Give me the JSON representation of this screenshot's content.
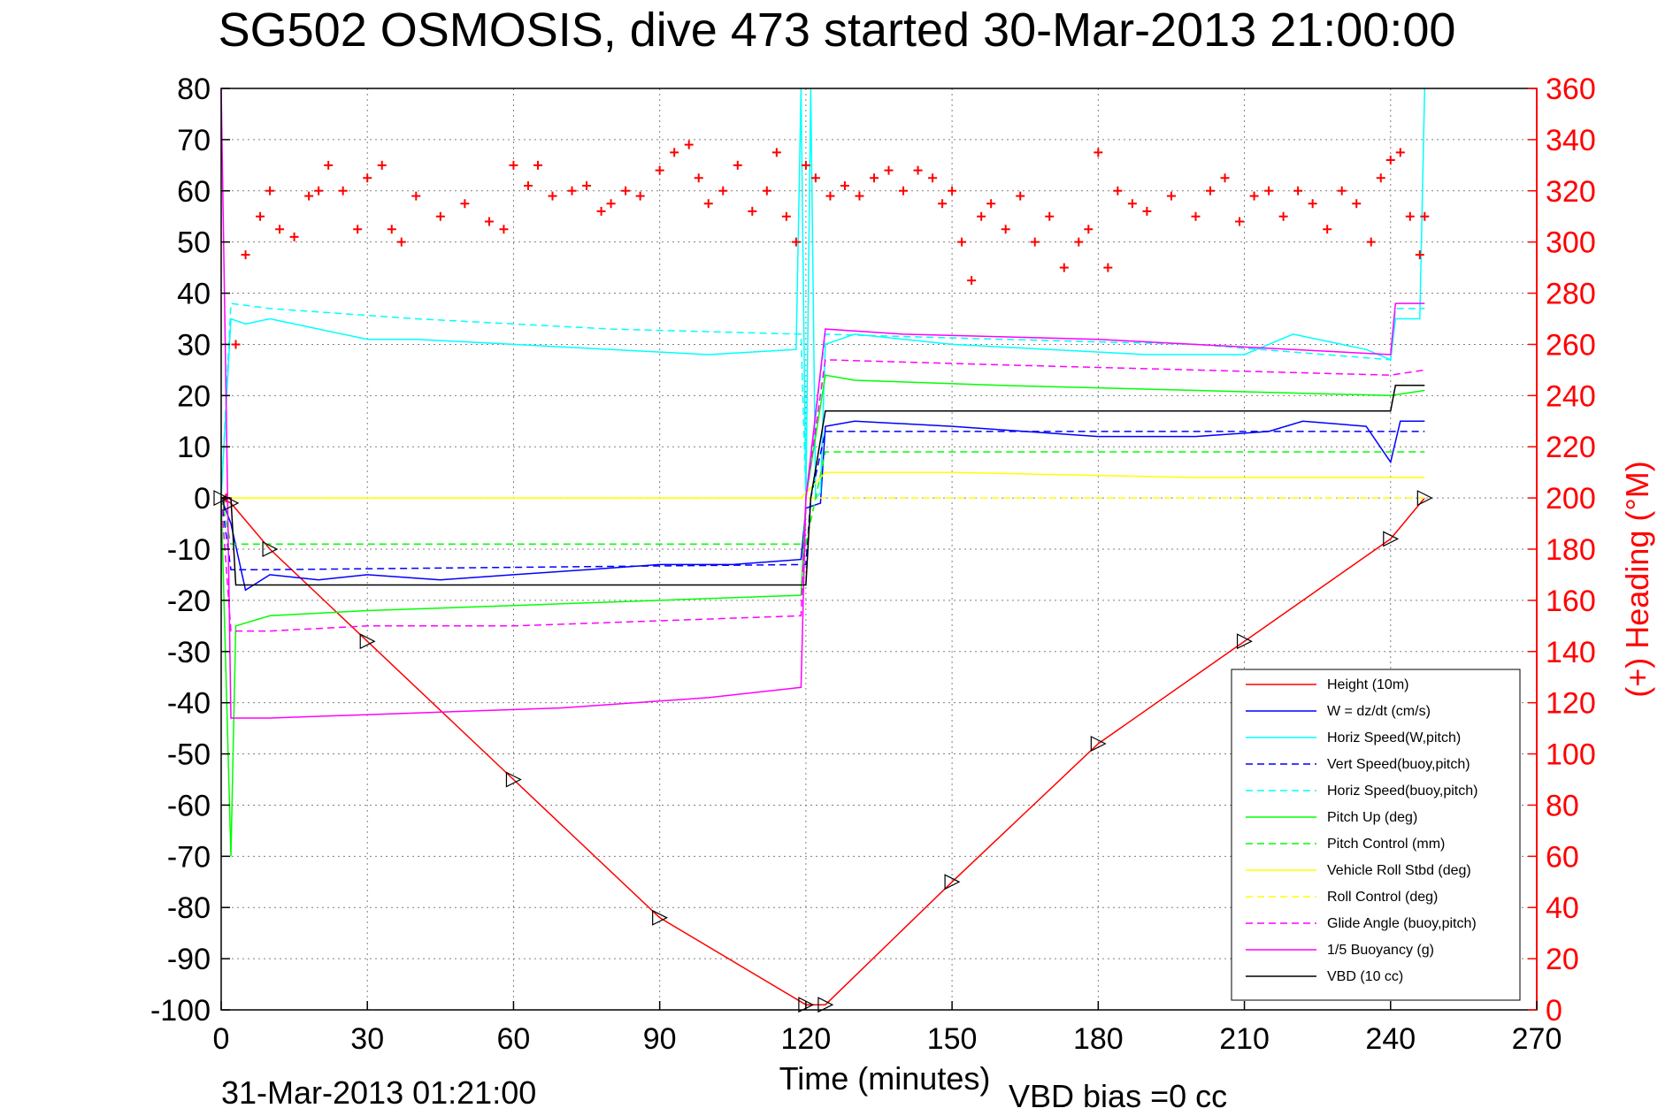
{
  "chart_data": {
    "type": "line",
    "title": "SG502 OSMOSIS, dive 473 started 30-Mar-2013 21:00:00",
    "xlabel": "Time (minutes)",
    "ylabel_right": "(+) Heading (°M)",
    "end_time": "31-Mar-2013 01:21:00",
    "vbd_bias": "VBD bias =0 cc",
    "xlim": [
      0,
      270
    ],
    "ylim": [
      -100,
      80
    ],
    "ylim_right": [
      0,
      360
    ],
    "x_ticks": [
      "0",
      "30",
      "60",
      "90",
      "120",
      "150",
      "180",
      "210",
      "240",
      "270"
    ],
    "y_ticks": [
      "80",
      "70",
      "60",
      "50",
      "40",
      "30",
      "20",
      "10",
      "0",
      "-10",
      "-20",
      "-30",
      "-40",
      "-50",
      "-60",
      "-70",
      "-80",
      "-90",
      "-100"
    ],
    "y_ticks_right": [
      "360",
      "340",
      "320",
      "300",
      "280",
      "260",
      "240",
      "220",
      "200",
      "180",
      "160",
      "140",
      "120",
      "100",
      "80",
      "60",
      "40",
      "20",
      "0"
    ],
    "grid": true,
    "legend_position": "bottom-right",
    "series": [
      {
        "name": "Height (10m)",
        "color": "#ff0000",
        "dash": "solid",
        "x": [
          0,
          2,
          10,
          30,
          60,
          90,
          120,
          124,
          150,
          180,
          210,
          240,
          247
        ],
        "y": [
          0,
          -1,
          -10,
          -28,
          -55,
          -82,
          -99,
          -99,
          -75,
          -48,
          -28,
          -8,
          0
        ]
      },
      {
        "name": "W = dz/dt (cm/s)",
        "color": "#0000ff",
        "dash": "solid",
        "x": [
          0,
          2,
          5,
          10,
          20,
          30,
          45,
          60,
          75,
          90,
          105,
          119,
          120,
          123,
          124,
          130,
          150,
          165,
          180,
          200,
          215,
          222,
          235,
          240,
          242,
          247
        ],
        "y": [
          0,
          -5,
          -18,
          -15,
          -16,
          -15,
          -16,
          -15,
          -14,
          -13,
          -13,
          -12,
          -2,
          -1,
          14,
          15,
          14,
          13,
          12,
          12,
          13,
          15,
          14,
          7,
          15,
          15
        ]
      },
      {
        "name": "Horiz Speed(W,pitch)",
        "color": "#00ffff",
        "dash": "solid",
        "x": [
          0,
          2,
          5,
          10,
          20,
          30,
          40,
          60,
          80,
          100,
          118,
          119,
          120,
          121,
          122,
          123,
          124,
          130,
          150,
          170,
          190,
          210,
          220,
          235,
          240,
          241,
          246,
          247
        ],
        "y": [
          0,
          35,
          34,
          35,
          33,
          31,
          31,
          30,
          29,
          28,
          29,
          80,
          0,
          80,
          0,
          1,
          30,
          32,
          30,
          29,
          28,
          28,
          32,
          29,
          27,
          35,
          35,
          80
        ]
      },
      {
        "name": "Vert Speed(buoy,pitch)",
        "color": "#0000ff",
        "dash": "dashed",
        "x": [
          0,
          2,
          10,
          120,
          121,
          124,
          247
        ],
        "y": [
          0,
          -14,
          -14,
          -13,
          0,
          13,
          13
        ]
      },
      {
        "name": "Horiz Speed(buoy,pitch)",
        "color": "#00ffff",
        "dash": "dashed",
        "x": [
          0,
          2,
          10,
          40,
          80,
          119,
          120,
          124,
          160,
          200,
          240,
          241,
          247
        ],
        "y": [
          0,
          38,
          37,
          35,
          33,
          32,
          0,
          32,
          31,
          30,
          27,
          37,
          37
        ]
      },
      {
        "name": "Pitch Up (deg)",
        "color": "#00ff00",
        "dash": "solid",
        "x": [
          0,
          2,
          3,
          10,
          30,
          60,
          90,
          119,
          120,
          124,
          130,
          160,
          200,
          240,
          247
        ],
        "y": [
          0,
          -70,
          -25,
          -23,
          -22,
          -21,
          -20,
          -19,
          0,
          24,
          23,
          22,
          21,
          20,
          21
        ]
      },
      {
        "name": "Pitch Control (mm)",
        "color": "#00ff00",
        "dash": "dashed",
        "x": [
          0,
          2,
          10,
          120,
          124,
          247
        ],
        "y": [
          0,
          -9,
          -9,
          -9,
          9,
          9
        ]
      },
      {
        "name": "Vehicle Roll Stbd (deg)",
        "color": "#ffff00",
        "dash": "solid",
        "x": [
          0,
          2,
          10,
          30,
          60,
          90,
          119,
          124,
          150,
          200,
          240,
          247
        ],
        "y": [
          0,
          0,
          0,
          0,
          0,
          0,
          0,
          5,
          5,
          4,
          4,
          4
        ]
      },
      {
        "name": "Roll Control (deg)",
        "color": "#ffff00",
        "dash": "dashed",
        "x": [
          0,
          2,
          10,
          60,
          120,
          124,
          200,
          247
        ],
        "y": [
          0,
          0,
          0,
          0,
          0,
          0,
          0,
          0
        ]
      },
      {
        "name": "Glide Angle (buoy,pitch)",
        "color": "#ff00ff",
        "dash": "dashed",
        "x": [
          0,
          2,
          10,
          30,
          60,
          90,
          119,
          120,
          124,
          160,
          200,
          240,
          247
        ],
        "y": [
          0,
          -26,
          -26,
          -25,
          -25,
          -24,
          -23,
          0,
          27,
          26,
          25,
          24,
          25
        ]
      },
      {
        "name": "1/5 Buoyancy (g)",
        "color": "#ff00ff",
        "dash": "solid",
        "x": [
          0,
          1,
          2,
          10,
          40,
          70,
          100,
          119,
          120,
          124,
          140,
          180,
          220,
          240,
          241,
          247
        ],
        "y": [
          80,
          20,
          -43,
          -43,
          -42,
          -41,
          -39,
          -37,
          0,
          33,
          32,
          31,
          29,
          28,
          38,
          38
        ]
      },
      {
        "name": "VBD (10 cc)",
        "color": "#000000",
        "dash": "solid",
        "x": [
          0,
          2,
          3,
          120,
          121,
          124,
          240,
          241,
          247
        ],
        "y": [
          0,
          0,
          -17,
          -17,
          0,
          17,
          17,
          22,
          22
        ]
      }
    ],
    "heading_series": {
      "name": "(+) Heading",
      "color": "#ff0000",
      "marker": "+",
      "axis": "right",
      "x": [
        1,
        3,
        5,
        8,
        10,
        12,
        15,
        18,
        20,
        22,
        25,
        28,
        30,
        33,
        35,
        37,
        40,
        45,
        50,
        55,
        58,
        60,
        63,
        65,
        68,
        72,
        75,
        78,
        80,
        83,
        86,
        90,
        93,
        96,
        98,
        100,
        103,
        106,
        109,
        112,
        114,
        116,
        118,
        120,
        122,
        125,
        128,
        131,
        134,
        137,
        140,
        143,
        146,
        148,
        150,
        152,
        154,
        156,
        158,
        161,
        164,
        167,
        170,
        173,
        176,
        178,
        180,
        182,
        184,
        187,
        190,
        195,
        200,
        203,
        206,
        209,
        212,
        215,
        218,
        221,
        224,
        227,
        230,
        233,
        236,
        238,
        240,
        242,
        244,
        246,
        247
      ],
      "y": [
        200,
        260,
        295,
        310,
        320,
        305,
        302,
        318,
        320,
        330,
        320,
        305,
        325,
        330,
        305,
        300,
        318,
        310,
        315,
        308,
        305,
        330,
        322,
        330,
        318,
        320,
        322,
        312,
        315,
        320,
        318,
        328,
        335,
        338,
        325,
        315,
        320,
        330,
        312,
        320,
        335,
        310,
        300,
        330,
        325,
        318,
        322,
        318,
        325,
        328,
        320,
        328,
        325,
        315,
        320,
        300,
        285,
        310,
        315,
        305,
        318,
        300,
        310,
        290,
        300,
        305,
        335,
        290,
        320,
        315,
        312,
        318,
        310,
        320,
        325,
        308,
        318,
        320,
        310,
        320,
        315,
        305,
        320,
        315,
        300,
        325,
        332,
        335,
        310,
        295,
        310
      ]
    }
  }
}
